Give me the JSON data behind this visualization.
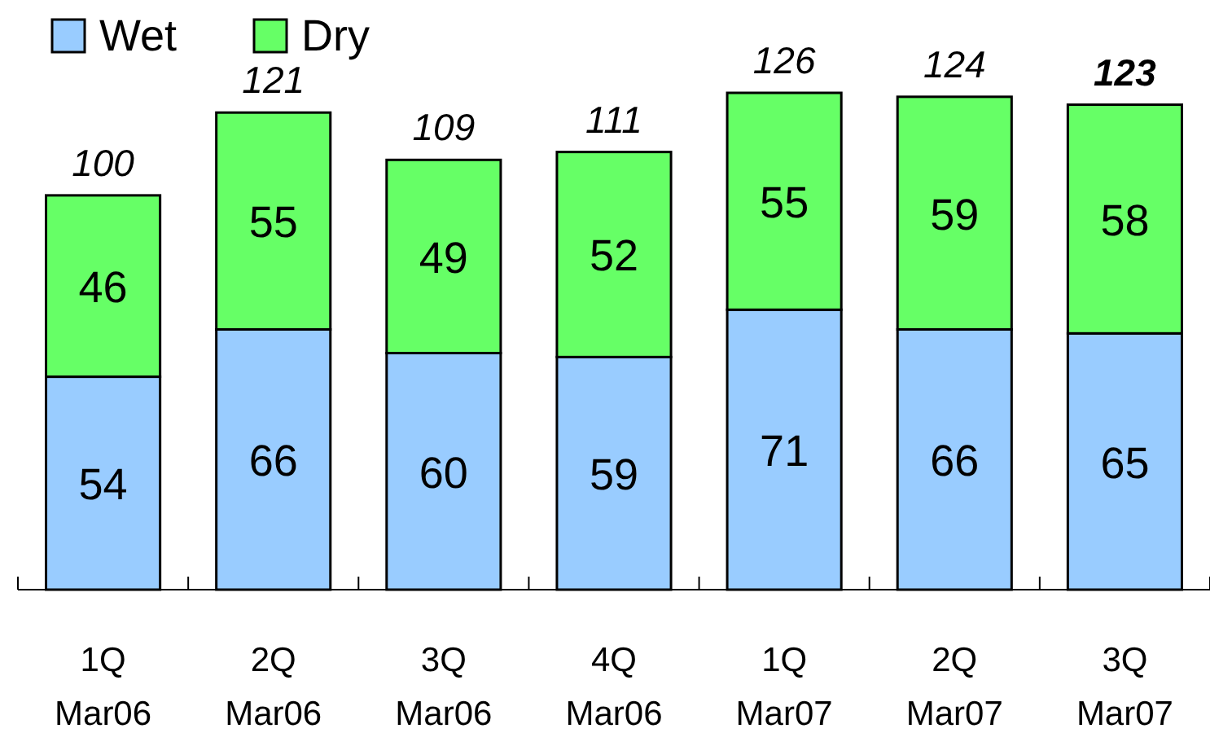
{
  "chart_data": {
    "type": "bar",
    "stacked": true,
    "data_labels": true,
    "legend": "top left",
    "categories": [
      "1Q\nMar06",
      "2Q\nMar06",
      "3Q\nMar06",
      "4Q\nMar06",
      "1Q\nMar07",
      "2Q\nMar07",
      "3Q\nMar07"
    ],
    "series": [
      {
        "name": "Wet",
        "color": "#99ccff",
        "values": [
          54,
          66,
          60,
          59,
          71,
          66,
          65
        ]
      },
      {
        "name": "Dry",
        "color": "#66ff66",
        "values": [
          46,
          55,
          49,
          52,
          55,
          59,
          58
        ]
      }
    ],
    "totals": [
      "100",
      "121",
      "109",
      "111",
      "126",
      "124",
      "123"
    ]
  }
}
